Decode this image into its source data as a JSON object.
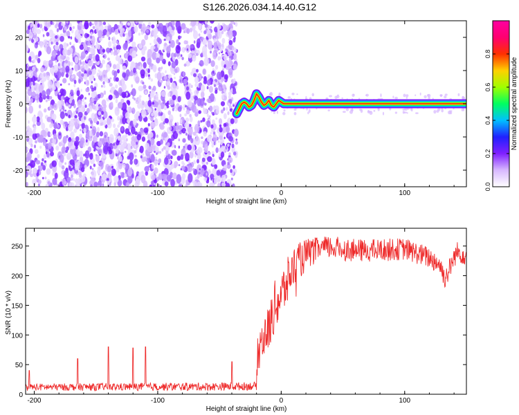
{
  "title": "S126.2026.034.14.40.G12",
  "colors": {
    "scatter": "#7a1fff",
    "snr_line": "#ee2a2a",
    "background": "#ffffff",
    "axis": "#000000"
  },
  "chart_data": [
    {
      "type": "heatmap",
      "name": "spectrogram",
      "xlabel": "Height of straight line (km)",
      "ylabel": "Frequency (Hz)",
      "xlim": [
        -207,
        150
      ],
      "ylim": [
        -25,
        25
      ],
      "xticks": [
        "-200",
        "-100",
        "0",
        "100"
      ],
      "xtick_values": [
        -200,
        -100,
        0,
        100
      ],
      "yticks": [
        "20",
        "10",
        "0",
        "-10",
        "-20"
      ],
      "ytick_values": [
        20,
        10,
        0,
        -10,
        -20
      ],
      "noise_region_x": [
        -207,
        -36
      ],
      "signal_trace": [
        [
          -36,
          -3.0
        ],
        [
          -34,
          -1.5
        ],
        [
          -32,
          0.0
        ],
        [
          -30,
          0.5
        ],
        [
          -28,
          0.0
        ],
        [
          -26,
          -1.0
        ],
        [
          -24,
          -0.5
        ],
        [
          -22,
          1.0
        ],
        [
          -20,
          3.0
        ],
        [
          -18,
          2.0
        ],
        [
          -16,
          0.5
        ],
        [
          -14,
          -0.5
        ],
        [
          -12,
          0.0
        ],
        [
          -10,
          1.0
        ],
        [
          -8,
          -0.5
        ],
        [
          -6,
          -1.0
        ],
        [
          -4,
          0.0
        ],
        [
          -2,
          1.0
        ],
        [
          0,
          0.5
        ],
        [
          2,
          0.0
        ],
        [
          5,
          0.0
        ],
        [
          150,
          0.0
        ]
      ],
      "colorbar": {
        "label": "Normalized spectral amplitude",
        "range": [
          0.0,
          1.0
        ],
        "ticks": [
          "0.0",
          "0.2",
          "0.4",
          "0.6",
          "0.8"
        ],
        "tick_values": [
          0.0,
          0.2,
          0.4,
          0.6,
          0.8
        ],
        "colors": [
          "#ffffff",
          "#d7b8ff",
          "#8020ff",
          "#2020ff",
          "#00c0ff",
          "#00ff60",
          "#a0ff00",
          "#ffd000",
          "#ff3000",
          "#ff0070",
          "#ff00a0"
        ]
      }
    },
    {
      "type": "line",
      "name": "snr",
      "xlabel": "Height of straight line (km)",
      "ylabel": "SNR (10 * v/v)",
      "xlim": [
        -207,
        150
      ],
      "ylim": [
        0,
        280
      ],
      "xticks": [
        "-200",
        "-100",
        "0",
        "100"
      ],
      "xtick_values": [
        -200,
        -100,
        0,
        100
      ],
      "yticks": [
        "0",
        "50",
        "100",
        "150",
        "200",
        "250"
      ],
      "ytick_values": [
        0,
        50,
        100,
        150,
        200,
        250
      ],
      "envelope": [
        [
          -207,
          12
        ],
        [
          -40,
          13
        ],
        [
          -20,
          14
        ],
        [
          -19,
          70
        ],
        [
          -15,
          95
        ],
        [
          -10,
          110
        ],
        [
          -5,
          150
        ],
        [
          0,
          165
        ],
        [
          5,
          190
        ],
        [
          10,
          215
        ],
        [
          20,
          235
        ],
        [
          30,
          245
        ],
        [
          40,
          248
        ],
        [
          60,
          242
        ],
        [
          80,
          243
        ],
        [
          100,
          245
        ],
        [
          110,
          238
        ],
        [
          120,
          230
        ],
        [
          128,
          220
        ],
        [
          133,
          195
        ],
        [
          137,
          215
        ],
        [
          142,
          240
        ],
        [
          150,
          235
        ]
      ],
      "noise_amplitude": [
        [
          -207,
          6
        ],
        [
          -20,
          7
        ],
        [
          -19,
          35
        ],
        [
          0,
          45
        ],
        [
          10,
          35
        ],
        [
          30,
          20
        ],
        [
          150,
          18
        ]
      ],
      "spikes": [
        [
          -204,
          40
        ],
        [
          -165,
          60
        ],
        [
          -140,
          80
        ],
        [
          -120,
          78
        ],
        [
          -110,
          80
        ],
        [
          -40,
          55
        ]
      ]
    }
  ]
}
